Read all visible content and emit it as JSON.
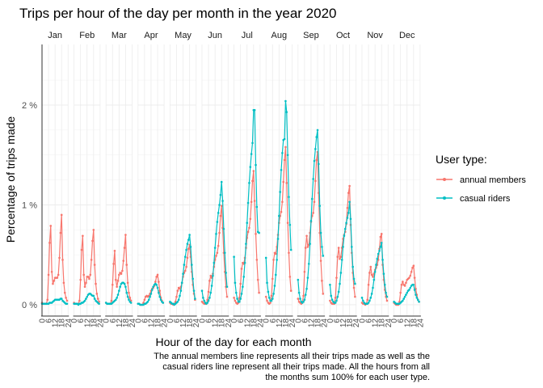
{
  "chart_data": {
    "type": "line",
    "title": "Trips per hour of the day per month in the year 2020",
    "xlabel": "Hour of the day for each month",
    "ylabel": "Percentage of trips made",
    "ylim": [
      0,
      2.4
    ],
    "y_ticks": [
      "0 %",
      "1 %",
      "2 %"
    ],
    "x_ticks": [
      "0",
      "6",
      "12",
      "18",
      "24"
    ],
    "panels": [
      "Jan",
      "Feb",
      "Mar",
      "Apr",
      "May",
      "Jun",
      "Jul",
      "Aug",
      "Sep",
      "Oct",
      "Nov",
      "Dec"
    ],
    "x": [
      0,
      1,
      2,
      3,
      4,
      5,
      6,
      7,
      8,
      9,
      10,
      11,
      12,
      13,
      14,
      15,
      16,
      17,
      18,
      19,
      20,
      21,
      22,
      23
    ],
    "legend": {
      "title": "User type:",
      "position": "right"
    },
    "caption": [
      "The annual members line represents all their trips made as well as the",
      "casual riders line represent all their trips made. All the hours from all",
      "the months sum 100% for each user type."
    ],
    "colors": {
      "annual members": "#F8766D",
      "casual riders": "#00BFC4"
    },
    "series": [
      {
        "name": "annual members",
        "values": [
          [
            0.02,
            0.01,
            0.01,
            0.01,
            0.01,
            0.05,
            0.3,
            0.62,
            0.79,
            0.33,
            0.21,
            0.24,
            0.27,
            0.27,
            0.27,
            0.3,
            0.47,
            0.72,
            0.9,
            0.45,
            0.22,
            0.12,
            0.07,
            0.04
          ],
          [
            0.02,
            0.01,
            0.01,
            0.01,
            0.01,
            0.04,
            0.25,
            0.55,
            0.69,
            0.3,
            0.18,
            0.22,
            0.28,
            0.28,
            0.26,
            0.3,
            0.45,
            0.64,
            0.75,
            0.4,
            0.21,
            0.11,
            0.06,
            0.03
          ],
          [
            0.02,
            0.01,
            0.01,
            0.01,
            0.01,
            0.04,
            0.2,
            0.41,
            0.54,
            0.25,
            0.18,
            0.24,
            0.3,
            0.32,
            0.31,
            0.34,
            0.44,
            0.57,
            0.7,
            0.4,
            0.22,
            0.12,
            0.07,
            0.04
          ],
          [
            0.01,
            0.01,
            0.0,
            0.0,
            0.0,
            0.02,
            0.05,
            0.08,
            0.09,
            0.08,
            0.09,
            0.11,
            0.14,
            0.16,
            0.17,
            0.19,
            0.23,
            0.28,
            0.3,
            0.23,
            0.14,
            0.07,
            0.04,
            0.02
          ],
          [
            0.02,
            0.01,
            0.01,
            0.0,
            0.01,
            0.03,
            0.08,
            0.14,
            0.17,
            0.16,
            0.18,
            0.22,
            0.28,
            0.32,
            0.34,
            0.38,
            0.47,
            0.56,
            0.6,
            0.48,
            0.33,
            0.2,
            0.11,
            0.05
          ],
          [
            0.03,
            0.02,
            0.01,
            0.01,
            0.01,
            0.05,
            0.13,
            0.24,
            0.29,
            0.27,
            0.31,
            0.38,
            0.45,
            0.49,
            0.52,
            0.59,
            0.72,
            0.89,
            0.99,
            0.77,
            0.52,
            0.33,
            0.18,
            0.08
          ],
          [
            0.07,
            0.04,
            0.02,
            0.01,
            0.02,
            0.07,
            0.21,
            0.36,
            0.42,
            0.41,
            0.47,
            0.57,
            0.67,
            0.73,
            0.77,
            0.86,
            1.03,
            1.24,
            1.34,
            1.04,
            0.71,
            0.45,
            0.25,
            0.12
          ],
          [
            0.08,
            0.04,
            0.02,
            0.01,
            0.02,
            0.09,
            0.26,
            0.45,
            0.52,
            0.51,
            0.58,
            0.7,
            0.82,
            0.89,
            0.93,
            1.03,
            1.23,
            1.45,
            1.58,
            1.22,
            0.82,
            0.52,
            0.28,
            0.14
          ],
          [
            0.06,
            0.03,
            0.02,
            0.01,
            0.02,
            0.09,
            0.33,
            0.57,
            0.69,
            0.58,
            0.6,
            0.72,
            0.83,
            0.89,
            0.92,
            1.03,
            1.24,
            1.45,
            1.53,
            1.12,
            0.72,
            0.44,
            0.24,
            0.11
          ],
          [
            0.04,
            0.02,
            0.01,
            0.01,
            0.01,
            0.07,
            0.27,
            0.48,
            0.57,
            0.46,
            0.48,
            0.57,
            0.66,
            0.7,
            0.73,
            0.81,
            0.97,
            1.12,
            1.19,
            0.8,
            0.52,
            0.32,
            0.17,
            0.08
          ],
          [
            0.02,
            0.01,
            0.01,
            0.0,
            0.01,
            0.05,
            0.2,
            0.32,
            0.38,
            0.3,
            0.28,
            0.31,
            0.35,
            0.37,
            0.4,
            0.45,
            0.56,
            0.68,
            0.71,
            0.4,
            0.25,
            0.15,
            0.08,
            0.04
          ],
          [
            0.02,
            0.01,
            0.0,
            0.0,
            0.0,
            0.03,
            0.12,
            0.2,
            0.23,
            0.2,
            0.19,
            0.22,
            0.25,
            0.26,
            0.27,
            0.29,
            0.33,
            0.37,
            0.39,
            0.27,
            0.16,
            0.1,
            0.05,
            0.03
          ]
        ]
      },
      {
        "name": "casual riders",
        "values": [
          [
            0.01,
            0.01,
            0.01,
            0.01,
            0.01,
            0.01,
            0.01,
            0.02,
            0.02,
            0.02,
            0.03,
            0.04,
            0.05,
            0.05,
            0.05,
            0.05,
            0.05,
            0.06,
            0.06,
            0.04,
            0.03,
            0.02,
            0.01,
            0.01
          ],
          [
            0.01,
            0.01,
            0.01,
            0.01,
            0.0,
            0.01,
            0.01,
            0.02,
            0.02,
            0.03,
            0.04,
            0.06,
            0.08,
            0.1,
            0.11,
            0.11,
            0.1,
            0.09,
            0.09,
            0.06,
            0.04,
            0.03,
            0.02,
            0.01
          ],
          [
            0.02,
            0.01,
            0.01,
            0.01,
            0.01,
            0.01,
            0.02,
            0.03,
            0.04,
            0.05,
            0.07,
            0.1,
            0.14,
            0.18,
            0.21,
            0.22,
            0.22,
            0.21,
            0.18,
            0.12,
            0.08,
            0.05,
            0.03,
            0.02
          ],
          [
            0.01,
            0.01,
            0.0,
            0.0,
            0.0,
            0.0,
            0.01,
            0.01,
            0.02,
            0.03,
            0.05,
            0.08,
            0.11,
            0.15,
            0.18,
            0.2,
            0.21,
            0.2,
            0.17,
            0.12,
            0.08,
            0.05,
            0.03,
            0.02
          ],
          [
            0.03,
            0.02,
            0.01,
            0.01,
            0.0,
            0.01,
            0.02,
            0.03,
            0.05,
            0.09,
            0.14,
            0.22,
            0.31,
            0.4,
            0.48,
            0.55,
            0.61,
            0.65,
            0.7,
            0.58,
            0.4,
            0.26,
            0.14,
            0.06
          ],
          [
            0.14,
            0.07,
            0.04,
            0.02,
            0.01,
            0.02,
            0.04,
            0.07,
            0.12,
            0.19,
            0.29,
            0.42,
            0.57,
            0.71,
            0.83,
            0.92,
            1.0,
            1.1,
            1.23,
            1.04,
            0.76,
            0.52,
            0.32,
            0.18
          ],
          [
            0.48,
            0.22,
            0.12,
            0.06,
            0.03,
            0.03,
            0.06,
            0.11,
            0.18,
            0.28,
            0.42,
            0.61,
            0.82,
            1.02,
            1.22,
            1.38,
            1.51,
            1.62,
            1.95,
            1.95,
            1.4,
            0.98,
            0.73,
            0.72
          ],
          [
            0.47,
            0.22,
            0.13,
            0.07,
            0.04,
            0.04,
            0.06,
            0.11,
            0.19,
            0.3,
            0.45,
            0.66,
            0.89,
            1.13,
            1.35,
            1.52,
            1.65,
            1.66,
            2.04,
            1.93,
            1.5,
            1.08,
            0.8,
            0.55
          ],
          [
            0.25,
            0.12,
            0.06,
            0.03,
            0.02,
            0.03,
            0.05,
            0.1,
            0.16,
            0.27,
            0.41,
            0.61,
            0.84,
            1.06,
            1.26,
            1.44,
            1.56,
            1.68,
            1.75,
            1.41,
            0.99,
            0.72,
            0.58,
            0.49
          ],
          [
            0.2,
            0.09,
            0.05,
            0.03,
            0.02,
            0.02,
            0.04,
            0.08,
            0.13,
            0.21,
            0.32,
            0.45,
            0.58,
            0.69,
            0.76,
            0.82,
            0.87,
            0.92,
            1.03,
            0.86,
            0.58,
            0.38,
            0.26,
            0.21
          ],
          [
            0.07,
            0.04,
            0.02,
            0.01,
            0.01,
            0.01,
            0.02,
            0.04,
            0.07,
            0.11,
            0.17,
            0.25,
            0.33,
            0.4,
            0.46,
            0.51,
            0.54,
            0.58,
            0.62,
            0.45,
            0.31,
            0.2,
            0.12,
            0.08
          ],
          [
            0.03,
            0.02,
            0.01,
            0.01,
            0.01,
            0.01,
            0.02,
            0.03,
            0.04,
            0.06,
            0.08,
            0.1,
            0.12,
            0.14,
            0.15,
            0.17,
            0.19,
            0.2,
            0.2,
            0.15,
            0.1,
            0.07,
            0.05,
            0.03
          ]
        ]
      }
    ]
  }
}
